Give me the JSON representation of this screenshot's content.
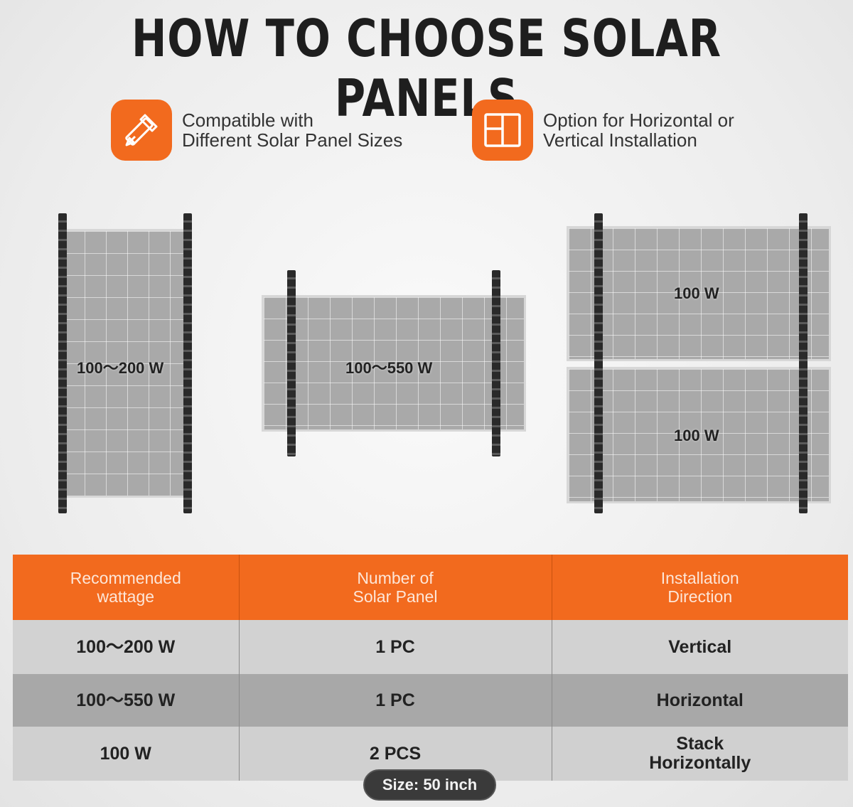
{
  "title": "HOW TO CHOOSE SOLAR PANELS",
  "features": [
    {
      "icon": "resize-pencil-ruler-icon",
      "text": "Compatible with\nDifferent Solar Panel Sizes"
    },
    {
      "icon": "layout-split-icon",
      "text": "Option for Horizontal or\nVertical Installation"
    }
  ],
  "panels": {
    "vertical_label": "100～200 W",
    "horizontal_label": "100～550 W",
    "stacked_top_label": "100 W",
    "stacked_bottom_label": "100 W"
  },
  "table": {
    "headers": [
      "Recommended\nwattage",
      "Number of\nSolar Panel",
      "Installation\nDirection"
    ],
    "rows": [
      [
        "100～200 W",
        "1 PC",
        "Vertical"
      ],
      [
        "100～550 W",
        "1 PC",
        "Horizontal"
      ],
      [
        "100 W",
        "2 PCS",
        "Stack\nHorizontally"
      ]
    ]
  },
  "size_badge": "Size: 50 inch",
  "colors": {
    "accent": "#f26a1e",
    "rail": "#2a2a2a",
    "panel": "#a9a9a9"
  }
}
